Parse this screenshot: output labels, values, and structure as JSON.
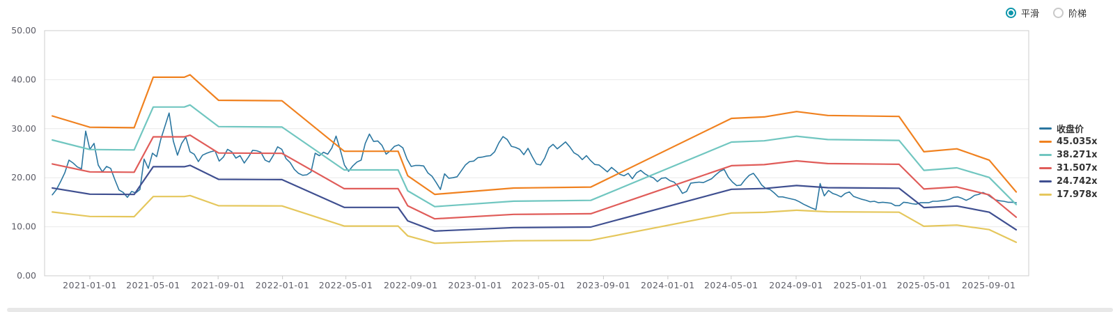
{
  "controls": {
    "smooth_label": "平滑",
    "step_label": "阶梯",
    "selected": "平滑",
    "accent_color": "#0d96ab"
  },
  "colors": {
    "grid": "#e9e9e9",
    "border": "#cccccc",
    "tick": "#c9c9c9",
    "axis_text": "#5c5c66",
    "legend_text": "#333333"
  },
  "chart_data": {
    "type": "line",
    "y_axis": {
      "min": 0,
      "max": 50,
      "tick_labels": [
        "0.00",
        "10.00",
        "20.00",
        "30.00",
        "40.00",
        "50.00"
      ],
      "grid": true
    },
    "x_axis": {
      "tick_labels": [
        "2021-01-01",
        "2021-05-01",
        "2021-09-01",
        "2022-01-01",
        "2022-05-01",
        "2022-09-01",
        "2023-01-01",
        "2023-05-01",
        "2023-09-01",
        "2024-01-01",
        "2024-05-01",
        "2024-09-01",
        "2025-01-01",
        "2025-05-01",
        "2025-09-01"
      ],
      "t_domain": [
        2020.765,
        2025.873
      ]
    },
    "legend": {
      "position": "right",
      "entries": [
        "收盘价",
        "45.035x",
        "38.271x",
        "31.507x",
        "24.742x",
        "17.978x"
      ]
    },
    "close_series": {
      "name": "收盘价",
      "color": "#2a76a0",
      "t_start": 2020.805,
      "t_step": 0.02166,
      "values": [
        16.5,
        17.6,
        19.2,
        21.0,
        23.6,
        23.0,
        22.2,
        21.8,
        29.5,
        25.8,
        27.0,
        22.6,
        21.2,
        22.3,
        21.9,
        19.6,
        17.5,
        17.0,
        16.0,
        17.2,
        16.9,
        17.6,
        23.8,
        21.9,
        25.0,
        24.3,
        27.8,
        30.5,
        33.2,
        27.5,
        24.6,
        27.0,
        28.3,
        25.3,
        24.8,
        23.3,
        24.6,
        25.0,
        25.3,
        25.5,
        23.4,
        24.2,
        25.8,
        25.3,
        24.0,
        24.5,
        23.0,
        24.2,
        25.6,
        25.5,
        25.2,
        23.6,
        23.2,
        24.6,
        26.3,
        25.8,
        23.9,
        23.1,
        21.7,
        20.9,
        20.5,
        20.6,
        21.2,
        25.0,
        24.5,
        25.2,
        24.8,
        26.1,
        28.5,
        25.7,
        22.6,
        21.3,
        22.4,
        23.2,
        23.6,
        27.0,
        28.9,
        27.4,
        27.5,
        26.6,
        24.8,
        25.5,
        26.4,
        26.7,
        26.1,
        23.8,
        22.3,
        22.5,
        22.5,
        22.4,
        21.0,
        20.3,
        19.0,
        17.6,
        20.8,
        19.9,
        20.0,
        20.2,
        21.4,
        22.6,
        23.3,
        23.4,
        24.1,
        24.2,
        24.4,
        24.5,
        25.3,
        27.1,
        28.4,
        27.8,
        26.4,
        26.2,
        25.8,
        24.7,
        26.0,
        24.3,
        22.8,
        22.6,
        24.0,
        26.1,
        26.8,
        25.9,
        26.6,
        27.3,
        26.3,
        25.1,
        24.6,
        23.7,
        24.5,
        23.5,
        22.7,
        22.6,
        21.9,
        21.2,
        22.1,
        21.4,
        20.7,
        20.4,
        20.9,
        19.8,
        21.0,
        21.5,
        20.8,
        20.3,
        20.0,
        19.2,
        19.9,
        20.0,
        19.4,
        19.1,
        18.2,
        16.8,
        17.2,
        18.9,
        19.0,
        19.1,
        19.0,
        19.4,
        19.8,
        20.6,
        21.3,
        21.7,
        20.1,
        19.1,
        18.4,
        18.5,
        19.6,
        20.5,
        20.9,
        19.8,
        18.5,
        17.8,
        17.6,
        16.9,
        16.1,
        16.1,
        15.9,
        15.7,
        15.5,
        15.1,
        14.6,
        14.2,
        13.8,
        13.5,
        18.8,
        16.3,
        17.4,
        16.8,
        16.5,
        16.1,
        16.8,
        17.1,
        16.2,
        15.9,
        15.6,
        15.4,
        15.1,
        15.2,
        14.9,
        15.0,
        14.9,
        14.8,
        14.3,
        14.3,
        15.0,
        14.9,
        14.7,
        14.6,
        14.9,
        14.9,
        14.9,
        15.2,
        15.2,
        15.3,
        15.4,
        15.6,
        16.0,
        16.1,
        15.8,
        15.4,
        15.8,
        16.4,
        16.6,
        17.0,
        16.6,
        16.0,
        15.5,
        15.3,
        15.2,
        15.0,
        15.0,
        14.9
      ]
    },
    "pe_bands": {
      "note": "band value = shape_v * multiple / reference_multiple",
      "reference_multiple": 45.035,
      "shape_t": [
        2020.805,
        2021.0,
        2021.23,
        2021.329,
        2021.49,
        2021.52,
        2021.668,
        2021.997,
        2022.32,
        2022.6,
        2022.65,
        2022.79,
        2023.2,
        2023.6,
        2024.33,
        2024.5,
        2024.668,
        2024.83,
        2025.2,
        2025.329,
        2025.5,
        2025.668,
        2025.808
      ],
      "shape_v": [
        32.6,
        30.3,
        30.2,
        40.5,
        40.5,
        41.0,
        35.8,
        35.7,
        25.4,
        25.4,
        20.4,
        16.6,
        17.9,
        18.1,
        32.1,
        32.4,
        33.5,
        32.7,
        32.5,
        25.3,
        25.9,
        23.6,
        17.1
      ],
      "bands": [
        {
          "label": "45.035x",
          "multiple": 45.035,
          "color": "#f0811f"
        },
        {
          "label": "38.271x",
          "multiple": 38.271,
          "color": "#70c6c0"
        },
        {
          "label": "31.507x",
          "multiple": 31.507,
          "color": "#e05c59"
        },
        {
          "label": "24.742x",
          "multiple": 24.742,
          "color": "#3f4f90"
        },
        {
          "label": "17.978x",
          "multiple": 17.978,
          "color": "#e5c75c"
        }
      ]
    }
  }
}
